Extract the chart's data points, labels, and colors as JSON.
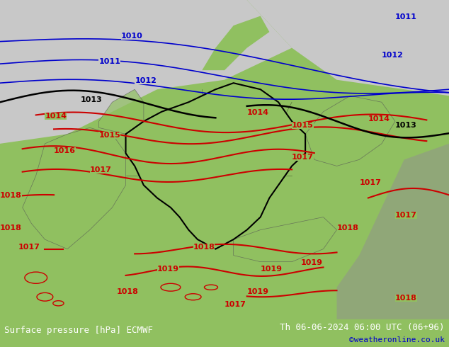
{
  "title_left": "Surface pressure [hPa] ECMWF",
  "title_right": "Th 06-06-2024 06:00 UTC (06+96)",
  "credit": "©weatheronline.co.uk",
  "bg_color": "#90c060",
  "gray_color": "#b0b0b0",
  "light_gray": "#c8c8c8",
  "dark_gray": "#909090",
  "footer_bg": "#000000",
  "footer_text_color": "#ffffff",
  "credit_color": "#0000cc",
  "blue_contour_color": "#0000cc",
  "black_contour_color": "#000000",
  "red_contour_color": "#cc0000",
  "contour_lw_blue": 1.2,
  "contour_lw_black": 1.8,
  "contour_lw_red": 1.5,
  "label_fontsize": 8,
  "footer_fontsize": 9,
  "figsize": [
    6.34,
    4.9
  ],
  "dpi": 100
}
